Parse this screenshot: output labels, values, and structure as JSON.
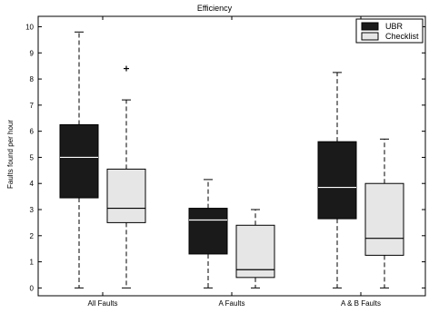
{
  "chart_data": {
    "type": "boxplot",
    "title": "Efficiency",
    "xlabel": "",
    "ylabel": "Faults found per hour",
    "ylim": [
      -0.3,
      10.4
    ],
    "yticks": [
      0,
      1,
      2,
      3,
      4,
      5,
      6,
      7,
      8,
      9,
      10
    ],
    "categories": [
      "All Faults",
      "A Faults",
      "A & B Faults"
    ],
    "grid": false,
    "legend_position": "top-right",
    "series": [
      {
        "name": "UBR",
        "color": "#1a1a1a",
        "median_color": "#ffffff",
        "boxes": [
          {
            "whisker_low": 0,
            "q1": 3.45,
            "median": 5.0,
            "q3": 6.25,
            "whisker_high": 9.8,
            "outliers": []
          },
          {
            "whisker_low": 0,
            "q1": 1.3,
            "median": 2.6,
            "q3": 3.05,
            "whisker_high": 4.15,
            "outliers": []
          },
          {
            "whisker_low": 0,
            "q1": 2.65,
            "median": 3.85,
            "q3": 5.6,
            "whisker_high": 8.25,
            "outliers": []
          }
        ]
      },
      {
        "name": "Checklist",
        "color": "#e6e6e6",
        "median_color": "#000000",
        "boxes": [
          {
            "whisker_low": 0,
            "q1": 2.5,
            "median": 3.05,
            "q3": 4.55,
            "whisker_high": 7.2,
            "outliers": [
              8.4
            ]
          },
          {
            "whisker_low": 0,
            "q1": 0.4,
            "median": 0.7,
            "q3": 2.4,
            "whisker_high": 3.0,
            "outliers": []
          },
          {
            "whisker_low": 0,
            "q1": 1.25,
            "median": 1.9,
            "q3": 4.0,
            "whisker_high": 5.7,
            "outliers": []
          }
        ]
      }
    ]
  }
}
